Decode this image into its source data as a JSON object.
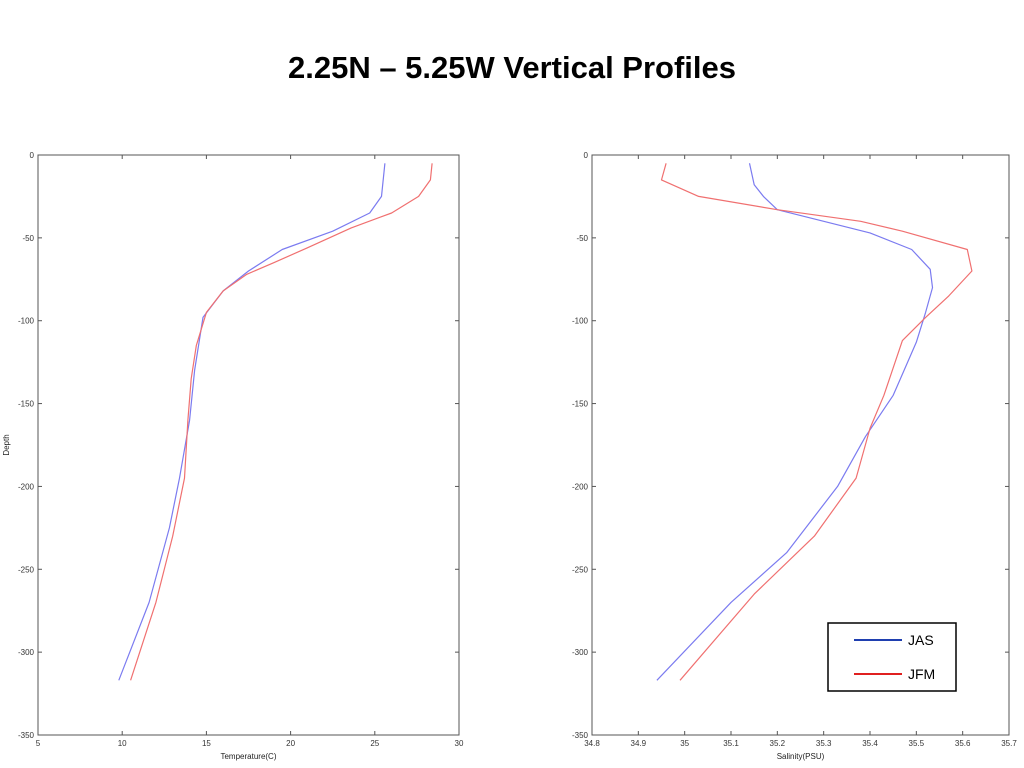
{
  "title": "2.25N – 5.25W Vertical Profiles",
  "chart_data": [
    {
      "type": "line",
      "xlabel": "Temperature(C)",
      "ylabel": "Depth",
      "xlim": [
        5,
        30
      ],
      "ylim": [
        -350,
        0
      ],
      "xticks": [
        5,
        10,
        15,
        20,
        25,
        30
      ],
      "yticks": [
        0,
        -50,
        -100,
        -150,
        -200,
        -250,
        -300,
        -350
      ],
      "grid": false,
      "series": [
        {
          "color": "#7b7bf0",
          "points": [
            [
              25.6,
              -5
            ],
            [
              25.4,
              -25
            ],
            [
              24.7,
              -35
            ],
            [
              22.5,
              -46
            ],
            [
              19.5,
              -57
            ],
            [
              17.5,
              -70
            ],
            [
              16.0,
              -82
            ],
            [
              14.8,
              -98
            ],
            [
              14.3,
              -130
            ],
            [
              14.0,
              -160
            ],
            [
              13.4,
              -195
            ],
            [
              12.8,
              -225
            ],
            [
              11.6,
              -270
            ],
            [
              9.8,
              -317
            ]
          ]
        },
        {
          "color": "#f07070",
          "points": [
            [
              28.4,
              -5
            ],
            [
              28.3,
              -15
            ],
            [
              27.6,
              -25
            ],
            [
              26.0,
              -35
            ],
            [
              23.6,
              -44
            ],
            [
              21.0,
              -56
            ],
            [
              19.0,
              -65
            ],
            [
              17.4,
              -72
            ],
            [
              16.0,
              -82
            ],
            [
              15.0,
              -95
            ],
            [
              14.4,
              -115
            ],
            [
              14.1,
              -135
            ],
            [
              13.9,
              -160
            ],
            [
              13.7,
              -195
            ],
            [
              13.0,
              -230
            ],
            [
              12.0,
              -270
            ],
            [
              10.5,
              -317
            ]
          ]
        }
      ]
    },
    {
      "type": "line",
      "xlabel": "Salinity(PSU)",
      "ylabel": "",
      "xlim": [
        34.8,
        35.7
      ],
      "ylim": [
        -350,
        0
      ],
      "xticks": [
        34.8,
        34.9,
        35,
        35.1,
        35.2,
        35.3,
        35.4,
        35.5,
        35.6,
        35.7
      ],
      "yticks": [
        0,
        -50,
        -100,
        -150,
        -200,
        -250,
        -300,
        -350
      ],
      "grid": false,
      "legend": {
        "position": "bottom-right",
        "entries": [
          {
            "label": "JAS",
            "color": "#1f3fb0"
          },
          {
            "label": "JFM",
            "color": "#e02020"
          }
        ]
      },
      "series": [
        {
          "color": "#7b7bf0",
          "points": [
            [
              35.14,
              -5
            ],
            [
              35.15,
              -18
            ],
            [
              35.17,
              -25
            ],
            [
              35.2,
              -33
            ],
            [
              35.3,
              -40
            ],
            [
              35.4,
              -47
            ],
            [
              35.49,
              -57
            ],
            [
              35.53,
              -69
            ],
            [
              35.535,
              -80
            ],
            [
              35.52,
              -95
            ],
            [
              35.5,
              -113
            ],
            [
              35.45,
              -145
            ],
            [
              35.39,
              -170
            ],
            [
              35.33,
              -200
            ],
            [
              35.22,
              -240
            ],
            [
              35.1,
              -270
            ],
            [
              34.94,
              -317
            ]
          ]
        },
        {
          "color": "#f07070",
          "points": [
            [
              34.96,
              -5
            ],
            [
              34.95,
              -15
            ],
            [
              35.03,
              -25
            ],
            [
              35.2,
              -33
            ],
            [
              35.38,
              -40
            ],
            [
              35.47,
              -46
            ],
            [
              35.61,
              -57
            ],
            [
              35.62,
              -70
            ],
            [
              35.57,
              -85
            ],
            [
              35.52,
              -98
            ],
            [
              35.47,
              -112
            ],
            [
              35.43,
              -145
            ],
            [
              35.4,
              -165
            ],
            [
              35.37,
              -195
            ],
            [
              35.28,
              -230
            ],
            [
              35.15,
              -265
            ],
            [
              34.99,
              -317
            ]
          ]
        }
      ]
    }
  ]
}
